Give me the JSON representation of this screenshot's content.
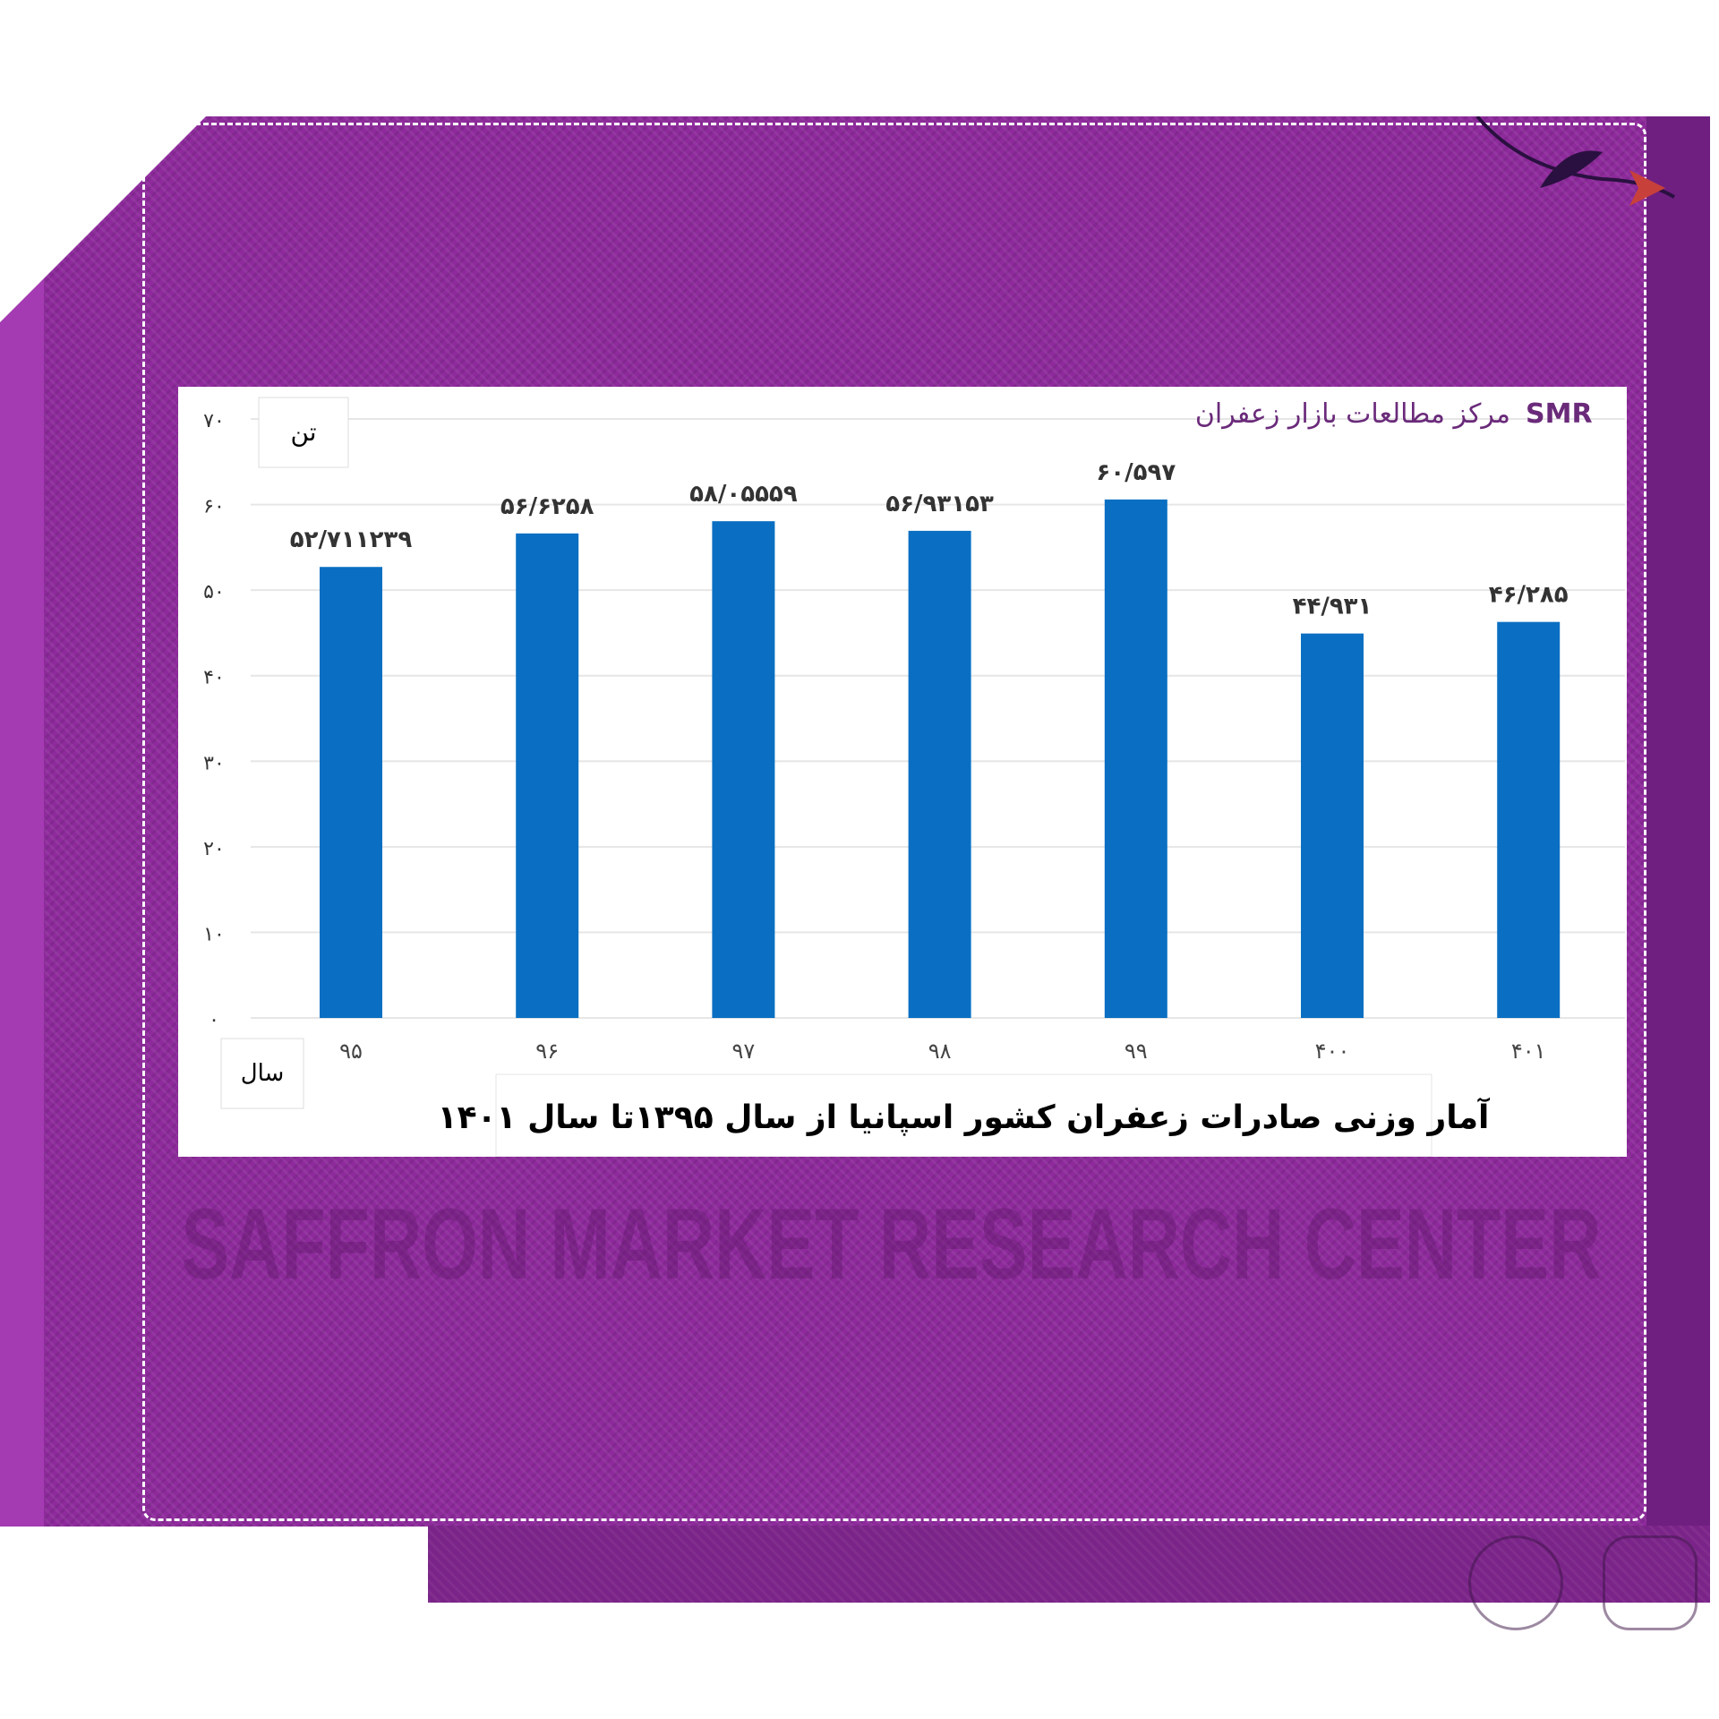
{
  "header": {
    "org_name": "مرکز مطالعات بازار زعفران",
    "logo_text": "SMR"
  },
  "watermark": "SAFFRON MARKET RESEARCH CENTER",
  "chart_data": {
    "type": "bar",
    "title": "آمار وزنی صادرات زعفران کشور اسپانیا از سال ۱۳۹۵تا سال ۱۴۰۱",
    "xlabel": "سال",
    "ylabel": "تن",
    "categories": [
      "۹۵",
      "۹۶",
      "۹۷",
      "۹۸",
      "۹۹",
      "۴۰۰",
      "۴۰۱"
    ],
    "values": [
      52.711239,
      56.6258,
      58.05559,
      56.93153,
      60.597,
      44.931,
      46.285
    ],
    "data_labels": [
      "۵۲/۷۱۱۲۳۹",
      "۵۶/۶۲۵۸",
      "۵۸/۰۵۵۵۹",
      "۵۶/۹۳۱۵۳",
      "۶۰/۵۹۷",
      "۴۴/۹۳۱",
      "۴۶/۲۸۵"
    ],
    "yticks": [
      0,
      10,
      20,
      30,
      40,
      50,
      60,
      70
    ],
    "ytick_labels": [
      "۰",
      "۱۰",
      "۲۰",
      "۳۰",
      "۴۰",
      "۵۰",
      "۶۰",
      "۷۰"
    ],
    "ylim": [
      0,
      70
    ],
    "grid": true,
    "bar_color": "#0a6fc2"
  },
  "colors": {
    "background": "#8e2a9c",
    "panel": "#ffffff",
    "brand_purple": "#6a2a7a"
  },
  "social_icons": [
    "telegram-icon",
    "instagram-icon"
  ]
}
